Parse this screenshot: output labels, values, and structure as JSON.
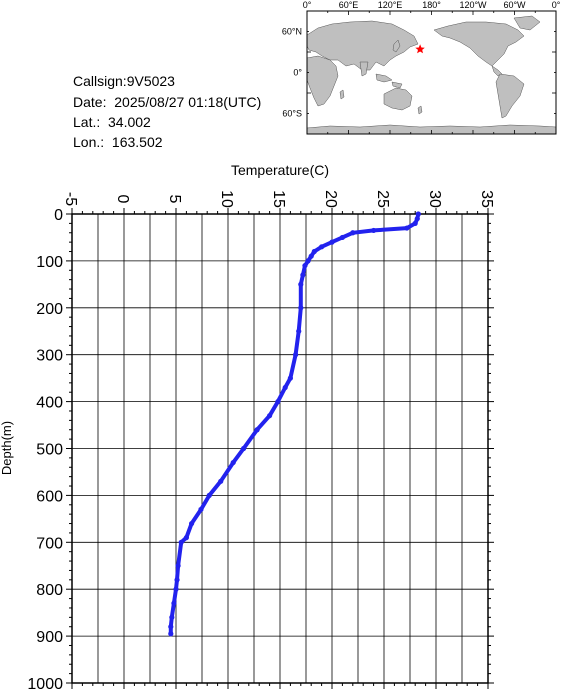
{
  "info": {
    "callsign": "Callsign:9V5023",
    "date": "Date:  2025/08/27 01:18(UTC)",
    "lat": "Lat.:  34.002",
    "lon": "Lon.:  163.502"
  },
  "map": {
    "top_labels": [
      "0°",
      "60°E",
      "120°E",
      "180°",
      "120°W",
      "60°W",
      "0°"
    ],
    "left_labels": [
      "60°N",
      "0°",
      "60°S"
    ],
    "station_marker": {
      "lat": 34.002,
      "lon": 163.502,
      "color": "#ff0000"
    },
    "land_color": "#bfbfbf",
    "ocean_color": "#ffffff"
  },
  "chart_data": {
    "type": "line",
    "title": "",
    "xlabel": "Temperature(C)",
    "ylabel": "Depth(m)",
    "xlim": [
      -5,
      35
    ],
    "ylim": [
      0,
      1000
    ],
    "y_inverted": true,
    "x_axis_position": "top",
    "grid": true,
    "x_ticks": [
      "-5",
      "0",
      "5",
      "10",
      "15",
      "20",
      "25",
      "30",
      "35"
    ],
    "y_ticks": [
      "0",
      "100",
      "200",
      "300",
      "400",
      "500",
      "600",
      "700",
      "800",
      "900",
      "1000"
    ],
    "series": [
      {
        "color": "#2222ee",
        "x": [
          28.3,
          28.2,
          28.0,
          27.2,
          24.0,
          22.0,
          21.0,
          20.0,
          19.0,
          18.3,
          18.0,
          17.7,
          17.4,
          17.2,
          17.0,
          17.0,
          16.8,
          16.5,
          16.0,
          15.5,
          14.8,
          14.0,
          12.8,
          11.5,
          10.5,
          9.3,
          8.2,
          7.4,
          6.5,
          6.0,
          5.5,
          5.2,
          5.1,
          5.0,
          4.8,
          4.6,
          4.5,
          4.5
        ],
        "y": [
          0,
          10,
          20,
          30,
          35,
          40,
          50,
          60,
          70,
          80,
          90,
          100,
          110,
          130,
          150,
          200,
          250,
          300,
          350,
          370,
          400,
          430,
          460,
          500,
          530,
          570,
          600,
          630,
          660,
          690,
          700,
          750,
          780,
          800,
          830,
          860,
          880,
          895
        ]
      }
    ]
  }
}
